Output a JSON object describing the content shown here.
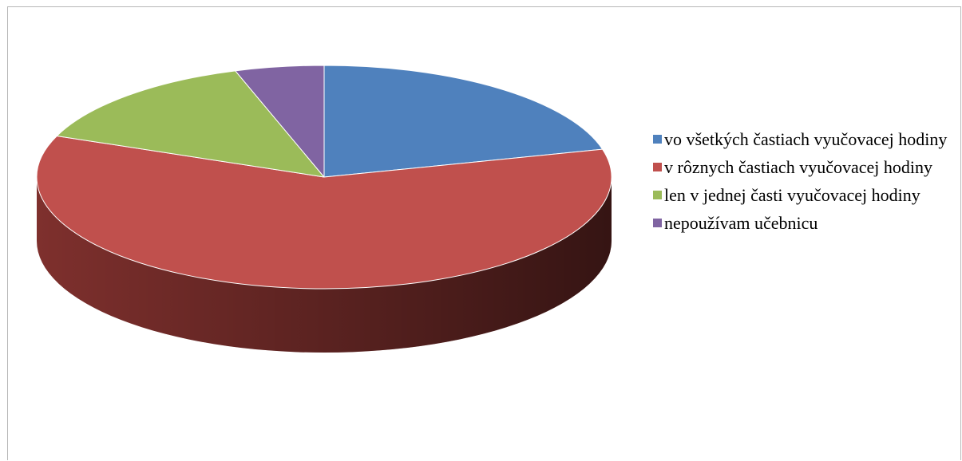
{
  "chart_data": {
    "type": "pie",
    "style": "3d",
    "title": "",
    "legend_position": "right",
    "slices": [
      {
        "label": "vo všetkých častiach vyučovacej hodiny",
        "value": 21,
        "color": "#4f81bd",
        "side_color": "#3a5f8c"
      },
      {
        "label": "v rôznych častiach vyučovacej hodiny",
        "value": 60,
        "color": "#c0504d",
        "side_color": "#8c3532"
      },
      {
        "label": "len v jednej časti vyučovacej hodiny",
        "value": 14,
        "color": "#9bbb59",
        "side_color": "#718a40"
      },
      {
        "label": "nepoužívam učebnicu",
        "value": 5,
        "color": "#8064a2",
        "side_color": "#5c4775"
      }
    ]
  }
}
